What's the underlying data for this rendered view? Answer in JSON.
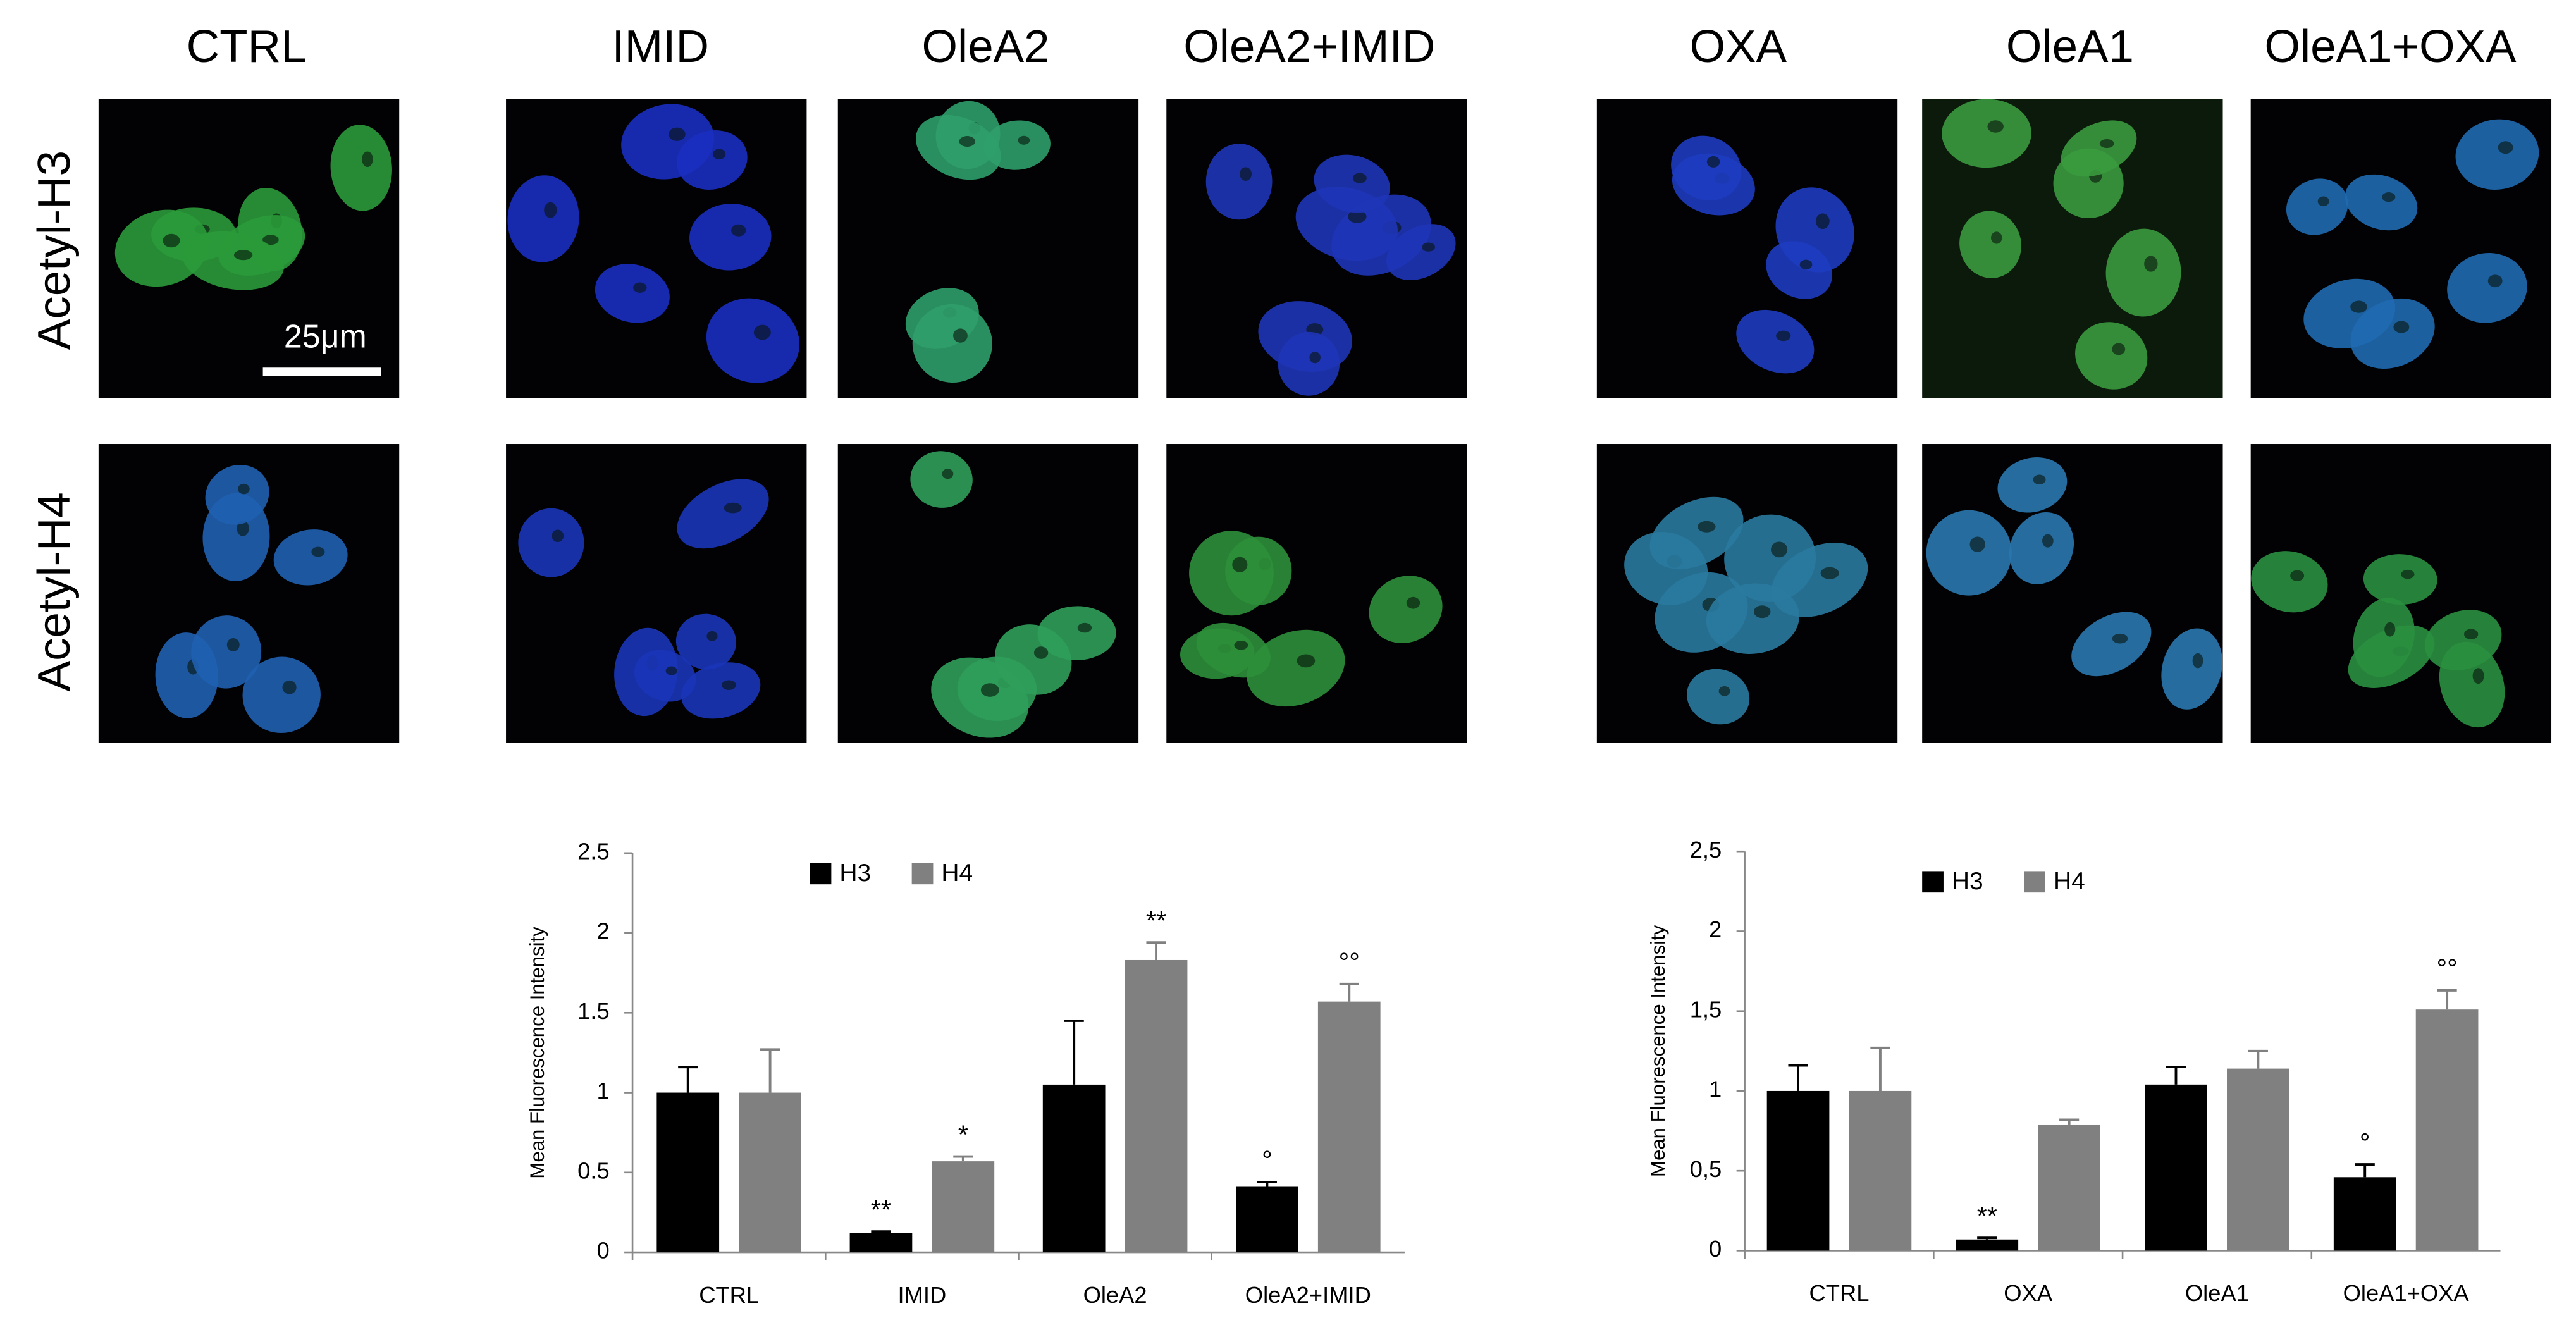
{
  "panels": {
    "columns": [
      "CTRL",
      "IMID",
      "OleA2",
      "OleA2+IMID",
      "OXA",
      "OleA1",
      "OleA1+OXA"
    ],
    "rows": [
      "Acetyl-H3",
      "Acetyl-H4"
    ],
    "scale_bar": "25μm"
  },
  "chart_data": [
    {
      "type": "bar",
      "ylabel": "Mean Fluorescence Intensity",
      "categories": [
        "CTRL",
        "IMID",
        "OleA2",
        "OleA2+IMID"
      ],
      "series": [
        {
          "name": "H3",
          "color": "#000000",
          "values": [
            1,
            0.12,
            1.05,
            0.41
          ],
          "errors": [
            0.16,
            0.01,
            0.4,
            0.03
          ],
          "significance": [
            null,
            "**",
            null,
            "°"
          ]
        },
        {
          "name": "H4",
          "color": "#808080",
          "values": [
            1,
            0.57,
            1.83,
            1.57
          ],
          "errors": [
            0.27,
            0.03,
            0.11,
            0.11
          ],
          "significance": [
            null,
            "*",
            "**",
            "°°"
          ]
        }
      ],
      "ylim": [
        0,
        2.5
      ],
      "yticks": [
        0,
        0.5,
        1,
        1.5,
        2,
        2.5
      ],
      "legend": "top-left"
    },
    {
      "type": "bar",
      "ylabel": "Mean Fluorescence Intensity",
      "categories": [
        "CTRL",
        "OXA",
        "OleA1",
        "OleA1+OXA"
      ],
      "series": [
        {
          "name": "H3",
          "color": "#000000",
          "values": [
            1,
            0.07,
            1.04,
            0.46
          ],
          "errors": [
            0.16,
            0.01,
            0.11,
            0.08
          ],
          "significance": [
            null,
            "**",
            null,
            "°"
          ]
        },
        {
          "name": "H4",
          "color": "#808080",
          "values": [
            1,
            0.79,
            1.14,
            1.51
          ],
          "errors": [
            0.27,
            0.03,
            0.11,
            0.12
          ],
          "significance": [
            null,
            null,
            null,
            "°°"
          ]
        }
      ],
      "ylim": [
        0,
        2.5
      ],
      "yticks": [
        0,
        {
          "value": 0.5,
          "label": "0,5"
        },
        1,
        {
          "value": 1.5,
          "label": "1,5"
        },
        2,
        {
          "value": 2.5,
          "label": "2,5"
        }
      ],
      "legend": "top-left"
    }
  ]
}
